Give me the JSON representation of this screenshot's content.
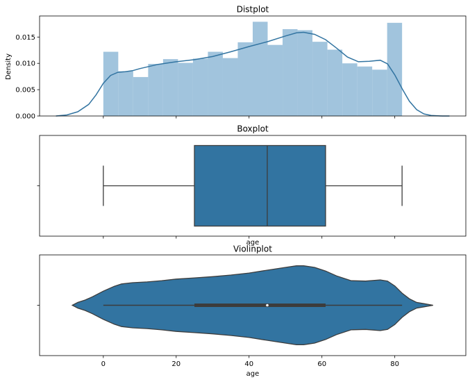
{
  "colors": {
    "bar": "#a1c4dd",
    "line": "#3274a1",
    "box_fill": "#3274a1",
    "box_edge": "#3c3c3c",
    "axes_edge": "#000000"
  },
  "chart_data": [
    {
      "type": "histogram",
      "title": "Distplot",
      "ylabel": "Density",
      "xlabel": "",
      "xlim": [
        -17.5,
        99.5
      ],
      "ylim": [
        0,
        0.019
      ],
      "x_ticks": [
        0,
        20,
        40,
        60,
        80
      ],
      "y_ticks": [
        0.0,
        0.005,
        0.01,
        0.015
      ],
      "y_tick_labels": [
        "0.000",
        "0.005",
        "0.010",
        "0.015"
      ],
      "show_x_tick_labels": false,
      "bins": {
        "left": [
          0,
          4.1,
          8.2,
          12.3,
          16.4,
          20.5,
          24.6,
          28.7,
          32.8,
          36.9,
          41.0,
          45.1,
          49.2,
          53.3,
          57.4,
          61.5,
          65.6,
          69.7,
          73.8,
          77.9
        ],
        "width": 4.1,
        "density": [
          0.0122,
          0.0085,
          0.0074,
          0.0099,
          0.0108,
          0.0101,
          0.0109,
          0.0122,
          0.011,
          0.014,
          0.0179,
          0.0135,
          0.0165,
          0.0163,
          0.0141,
          0.0126,
          0.01,
          0.0094,
          0.0088,
          0.0177
        ]
      },
      "kde": {
        "x": [
          -13,
          -10,
          -7,
          -4,
          -2,
          0,
          2,
          4,
          6,
          8,
          10,
          15,
          20,
          25,
          30,
          35,
          40,
          45,
          50,
          53,
          55,
          58,
          61,
          64,
          67,
          70,
          73,
          76,
          78,
          80,
          82,
          84,
          86,
          88,
          90,
          93,
          95
        ],
        "y": [
          0.0,
          0.0002,
          0.0008,
          0.0022,
          0.004,
          0.0062,
          0.0077,
          0.0083,
          0.0084,
          0.0086,
          0.009,
          0.0098,
          0.0103,
          0.0107,
          0.0113,
          0.0122,
          0.0132,
          0.0141,
          0.0152,
          0.0158,
          0.0159,
          0.0155,
          0.0145,
          0.0129,
          0.0112,
          0.0103,
          0.0104,
          0.0106,
          0.0099,
          0.0078,
          0.0052,
          0.0028,
          0.0012,
          0.0004,
          0.0001,
          0.0,
          0.0
        ]
      }
    },
    {
      "type": "box",
      "title": "Boxplot",
      "xlabel": "age",
      "ylabel": "",
      "xlim": [
        -17.5,
        99.5
      ],
      "x_ticks": [
        0,
        20,
        40,
        60,
        80
      ],
      "show_x_tick_labels": false,
      "y_tick_labels": [
        ""
      ],
      "stats": {
        "whisker_low": 0,
        "q1": 25,
        "median": 45,
        "q3": 61,
        "whisker_high": 82
      }
    },
    {
      "type": "violin",
      "title": "Violinplot",
      "xlabel": "age",
      "ylabel": "",
      "xlim": [
        -17.5,
        99.5
      ],
      "x_ticks": [
        0,
        20,
        40,
        60,
        80
      ],
      "x_tick_labels": [
        "0",
        "20",
        "40",
        "60",
        "80"
      ],
      "y_tick_labels": [
        ""
      ],
      "stats": {
        "whisker_low": 0,
        "q1": 25,
        "median": 45,
        "q3": 61,
        "whisker_high": 82
      },
      "density": {
        "x": [
          -8.5,
          -7,
          -5,
          -3,
          0,
          3,
          5,
          8,
          12,
          16,
          20,
          25,
          30,
          35,
          40,
          45,
          50,
          53,
          55,
          58,
          61,
          64,
          68,
          72,
          76,
          78,
          80,
          82,
          84,
          86,
          88,
          90.5
        ],
        "w": [
          0.0,
          0.07,
          0.13,
          0.21,
          0.35,
          0.47,
          0.53,
          0.56,
          0.58,
          0.61,
          0.65,
          0.68,
          0.71,
          0.75,
          0.8,
          0.87,
          0.94,
          0.98,
          0.98,
          0.94,
          0.85,
          0.73,
          0.61,
          0.6,
          0.63,
          0.6,
          0.48,
          0.3,
          0.16,
          0.07,
          0.04,
          0.0
        ]
      }
    }
  ]
}
